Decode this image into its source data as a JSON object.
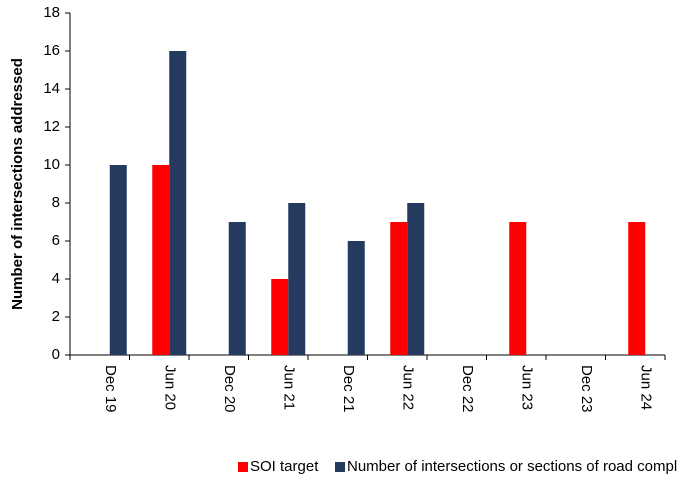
{
  "chart_data": {
    "type": "bar",
    "y_label": "Number of intersections addressed",
    "categories": [
      "Dec 19",
      "Jun 20",
      "Dec 20",
      "Jun 21",
      "Dec 21",
      "Jun 22",
      "Dec 22",
      "Jun 23",
      "Dec 23",
      "Jun 24"
    ],
    "series": [
      {
        "name": "SOI target",
        "color": "#ff0000",
        "values": [
          null,
          10,
          null,
          4,
          null,
          7,
          null,
          7,
          null,
          7
        ]
      },
      {
        "name": "Number of intersections or sections of road complete",
        "color": "#243a5e",
        "values": [
          10,
          16,
          7,
          8,
          6,
          8,
          null,
          null,
          null,
          null
        ]
      }
    ],
    "ylim": [
      0,
      18
    ],
    "yticks": [
      0,
      2,
      4,
      6,
      8,
      10,
      12,
      14,
      16,
      18
    ],
    "grid": false,
    "legend": "bottom"
  }
}
